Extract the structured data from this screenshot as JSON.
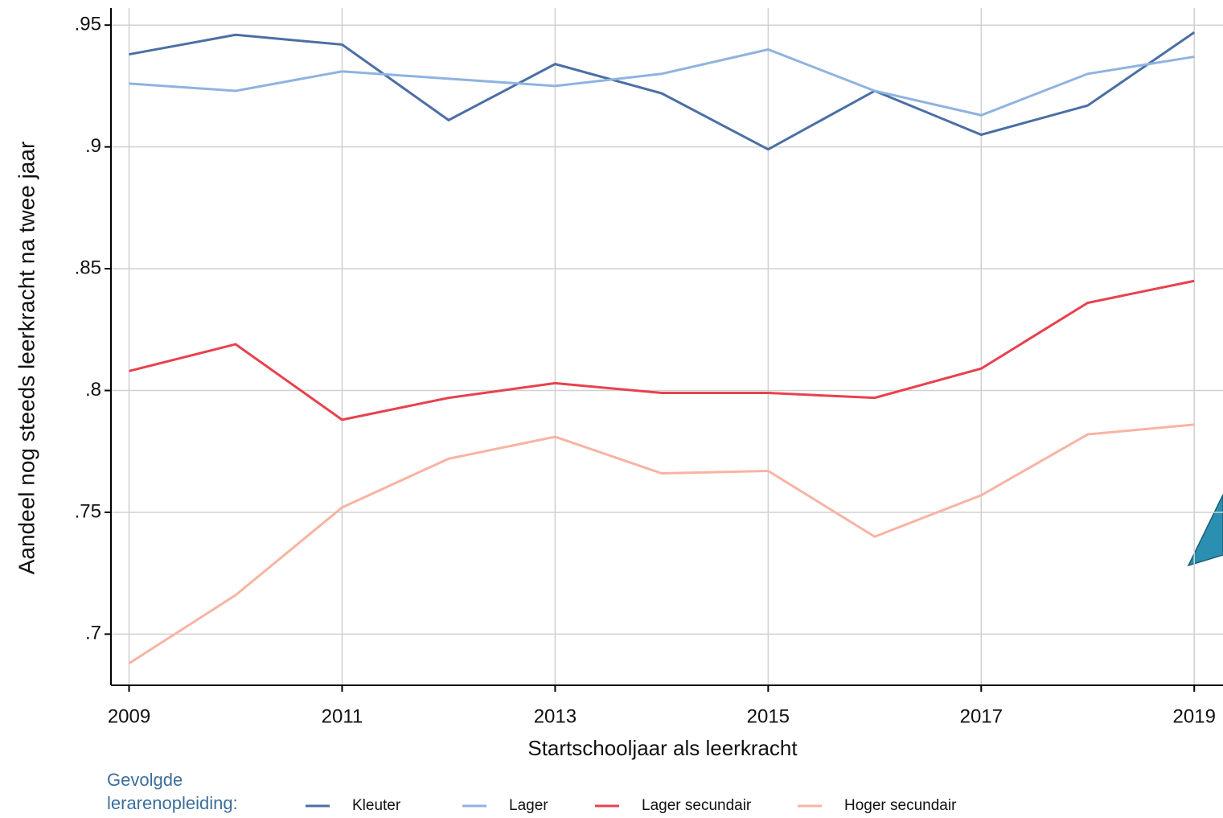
{
  "chart_data": {
    "type": "line",
    "x_label": "Startschooljaar als leerkracht",
    "y_label": "Aandeel nog steeds leerkracht na twee jaar",
    "legend_title": "Gevolgde lerarenopleiding:",
    "x": [
      2009,
      2010,
      2011,
      2012,
      2013,
      2014,
      2015,
      2016,
      2017,
      2018,
      2019
    ],
    "series": [
      {
        "name": "Kleuter",
        "color": "#4a6fa5",
        "values": [
          0.938,
          0.946,
          0.942,
          0.911,
          0.934,
          0.922,
          0.899,
          0.923,
          0.905,
          0.917,
          0.947
        ]
      },
      {
        "name": "Lager",
        "color": "#8fb3e0",
        "values": [
          0.926,
          0.923,
          0.931,
          0.928,
          0.925,
          0.93,
          0.94,
          0.923,
          0.913,
          0.93,
          0.937
        ]
      },
      {
        "name": "Lager secundair",
        "color": "#e8414e",
        "values": [
          0.808,
          0.819,
          0.788,
          0.797,
          0.803,
          0.799,
          0.799,
          0.797,
          0.809,
          0.836,
          0.845
        ]
      },
      {
        "name": "Hoger secundair",
        "color": "#f9b3a3",
        "values": [
          0.688,
          0.716,
          0.752,
          0.772,
          0.781,
          0.766,
          0.767,
          0.74,
          0.757,
          0.782,
          0.786
        ]
      }
    ],
    "xlim": [
      2008.83,
      2019.27
    ],
    "ylim": [
      0.679,
      0.957
    ],
    "xticks": [
      2009,
      2011,
      2013,
      2015,
      2017,
      2019
    ],
    "yticks": [
      {
        "value": 0.7,
        "label": ".7"
      },
      {
        "value": 0.75,
        "label": ".75"
      },
      {
        "value": 0.8,
        "label": ".8"
      },
      {
        "value": 0.85,
        "label": ".85"
      },
      {
        "value": 0.9,
        "label": ".9"
      },
      {
        "value": 0.95,
        "label": ".95"
      }
    ],
    "grid": true
  }
}
